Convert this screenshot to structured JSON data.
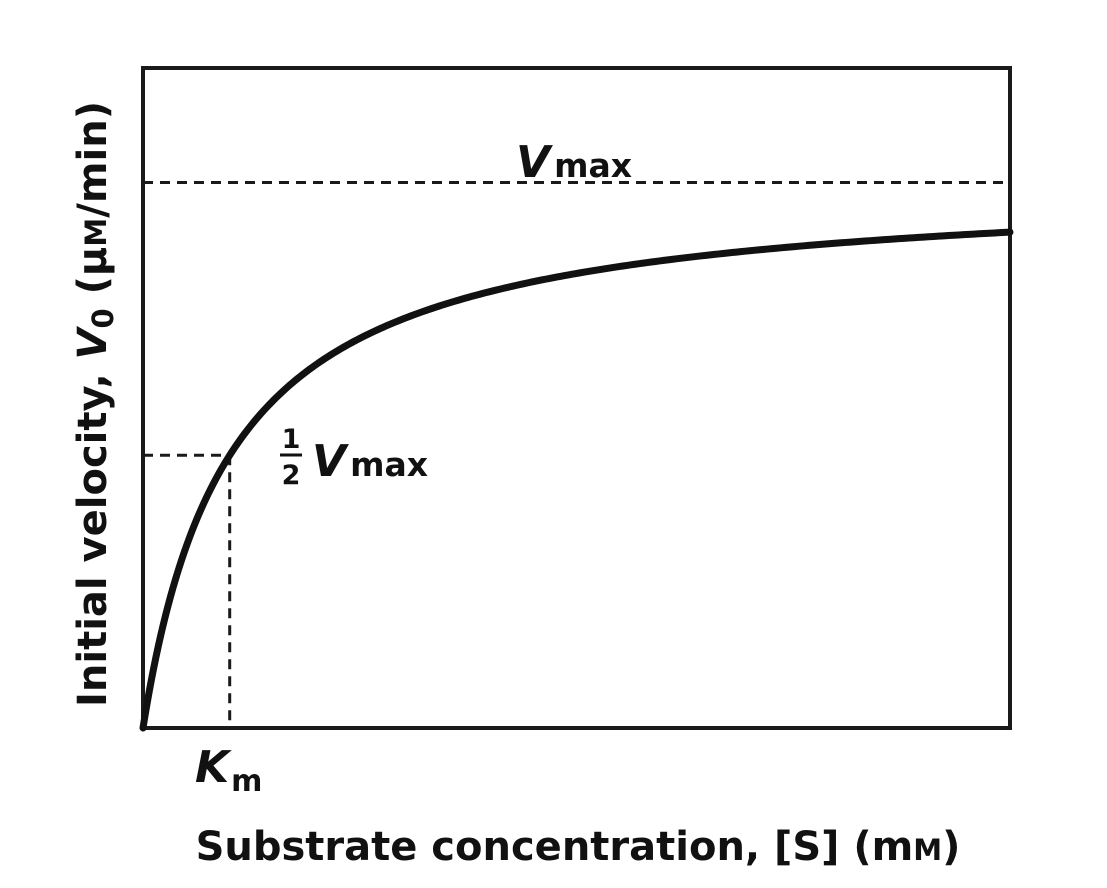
{
  "chart_data": {
    "type": "line",
    "title": "",
    "xlabel": "Substrate concentration, [S] (mM)",
    "xlabel_parts": {
      "text": "Substrate concentration, [S] (m",
      "smallcaps_unit": "M",
      "close": ")"
    },
    "ylabel": "Initial velocity, V0 (μM/min)",
    "ylabel_parts": {
      "pre": "Initial velocity, ",
      "v": "V",
      "sub": "0",
      "unit_pre": " (μ",
      "unit_smallcaps": "M",
      "unit_post": "/min)"
    },
    "model": "michaelis-menten",
    "vmax": 1,
    "km": 1,
    "xlim": [
      0,
      10
    ],
    "ylim": [
      0,
      1.21
    ],
    "grid": false,
    "legend": "none",
    "annotations": {
      "vmax": {
        "v": "V",
        "sub": "max",
        "y": 1
      },
      "half_vmax": {
        "num": "1",
        "den": "2",
        "v": "V",
        "sub": "max",
        "y": 0.5
      },
      "km": {
        "k": "K",
        "sub": "m",
        "x": 1
      }
    },
    "colors": {
      "line": "#111111",
      "frame": "#1a1a1a",
      "background": "#ffffff"
    }
  }
}
